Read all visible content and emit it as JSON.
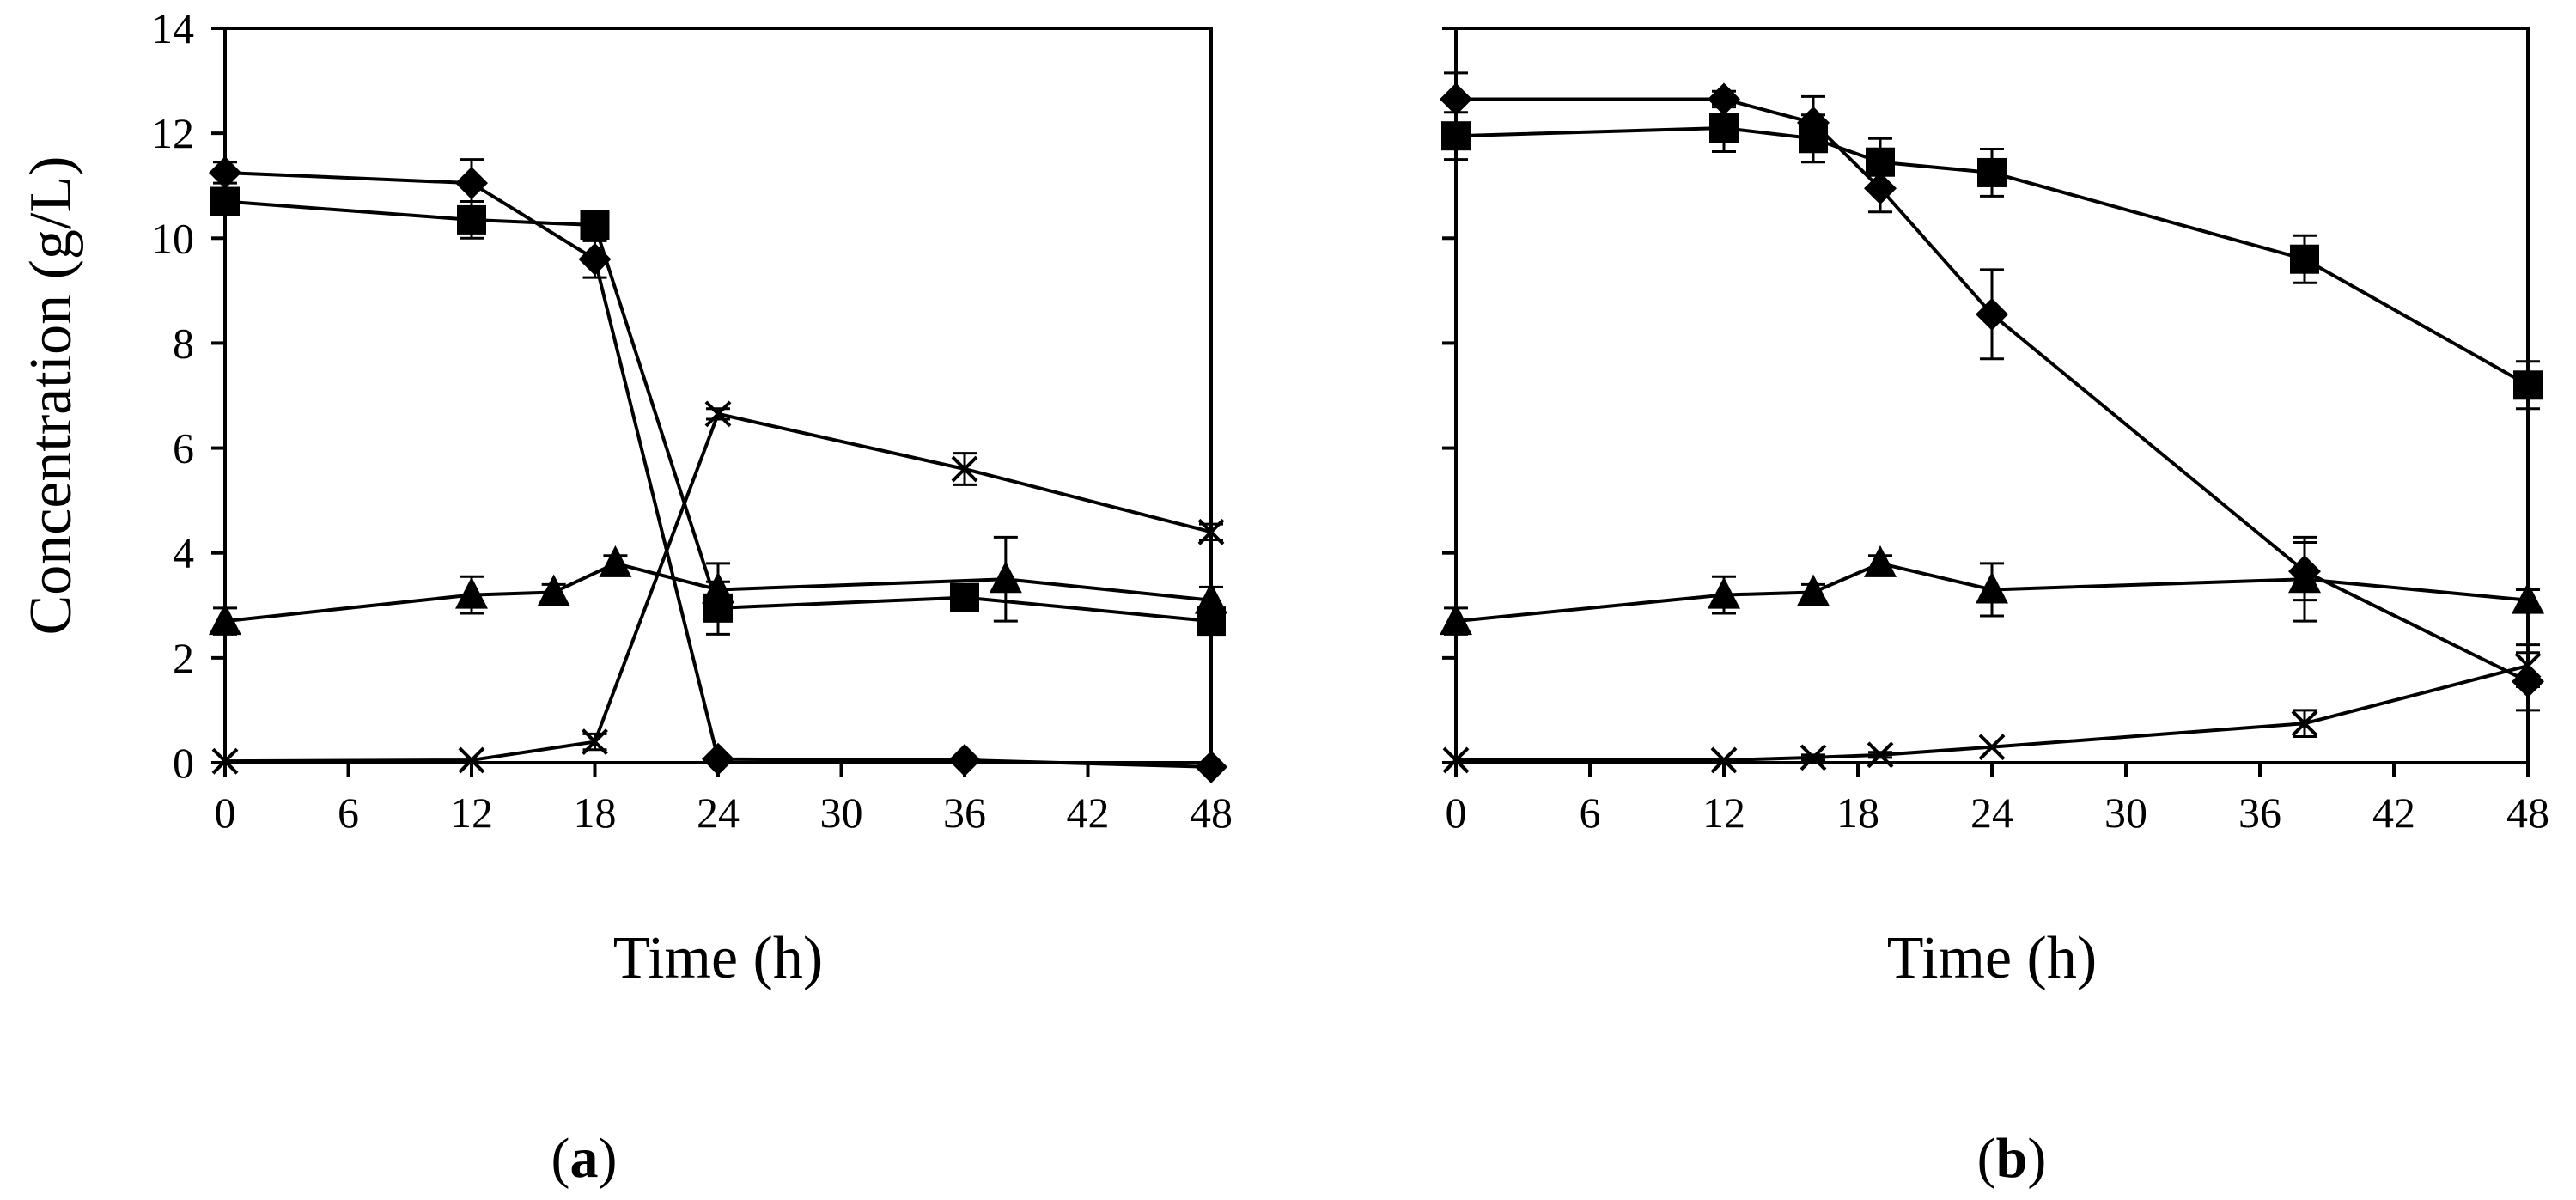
{
  "chart_data": [
    {
      "type": "line",
      "panel_label": "a",
      "xlabel": "Time (h)",
      "ylabel": "Concentration (g/L)",
      "xlim": [
        0,
        48
      ],
      "ylim": [
        0,
        14
      ],
      "xticks": [
        "0",
        "6",
        "12",
        "18",
        "24",
        "30",
        "36",
        "42",
        "48"
      ],
      "yticks": [
        "0",
        "2",
        "4",
        "6",
        "8",
        "10",
        "12",
        "14"
      ],
      "grid": false,
      "series": [
        {
          "marker": "diamond",
          "color": "#000000",
          "x": [
            0,
            12,
            18,
            24,
            36,
            48
          ],
          "values": [
            11.25,
            11.05,
            9.6,
            0.07,
            0.05,
            -0.08
          ],
          "errors": [
            0.2,
            0.45,
            0.35,
            0.05,
            0.03,
            0.0
          ]
        },
        {
          "marker": "square",
          "color": "#000000",
          "x": [
            0,
            12,
            18,
            24,
            36,
            48
          ],
          "values": [
            10.7,
            10.35,
            10.25,
            2.95,
            3.15,
            2.7
          ],
          "errors": [
            0.2,
            0.35,
            0.1,
            0.5,
            0.2,
            0.2
          ]
        },
        {
          "marker": "triangle",
          "color": "#000000",
          "x": [
            0,
            12,
            16,
            19,
            24,
            38,
            48
          ],
          "values": [
            2.7,
            3.2,
            3.25,
            3.8,
            3.3,
            3.5,
            3.1
          ],
          "errors": [
            0.25,
            0.35,
            0.15,
            0.15,
            0.5,
            0.8,
            0.25
          ]
        },
        {
          "marker": "asterisk",
          "color": "#000000",
          "x": [
            0,
            12,
            18,
            24,
            36,
            48
          ],
          "values": [
            0.03,
            0.05,
            0.4,
            6.65,
            5.6,
            4.4
          ],
          "errors": [
            0.0,
            0.0,
            0.15,
            0.1,
            0.3,
            0.15
          ]
        }
      ]
    },
    {
      "type": "line",
      "panel_label": "b",
      "xlabel": "Time (h)",
      "ylabel": "",
      "xlim": [
        0,
        48
      ],
      "ylim": [
        0,
        14
      ],
      "xticks": [
        "0",
        "6",
        "12",
        "18",
        "24",
        "30",
        "36",
        "42",
        "48"
      ],
      "yticks": [],
      "grid": false,
      "series": [
        {
          "marker": "diamond",
          "color": "#000000",
          "x": [
            0,
            12,
            16,
            19,
            24,
            38,
            48
          ],
          "values": [
            12.65,
            12.65,
            12.2,
            10.95,
            8.55,
            3.65,
            1.55
          ],
          "errors": [
            0.5,
            0.15,
            0.5,
            0.45,
            0.85,
            0.55,
            0.55
          ]
        },
        {
          "marker": "square",
          "color": "#000000",
          "x": [
            0,
            12,
            16,
            19,
            24,
            38,
            48
          ],
          "values": [
            11.95,
            12.1,
            11.9,
            11.45,
            11.25,
            9.6,
            7.2
          ],
          "errors": [
            0.45,
            0.45,
            0.45,
            0.45,
            0.45,
            0.45,
            0.45
          ]
        },
        {
          "marker": "triangle",
          "color": "#000000",
          "x": [
            0,
            12,
            16,
            19,
            24,
            38,
            48
          ],
          "values": [
            2.7,
            3.2,
            3.25,
            3.8,
            3.3,
            3.5,
            3.1
          ],
          "errors": [
            0.25,
            0.35,
            0.15,
            0.15,
            0.5,
            0.8,
            0.2
          ]
        },
        {
          "marker": "asterisk",
          "color": "#000000",
          "x": [
            0,
            12,
            16,
            19,
            24,
            38,
            48
          ],
          "values": [
            0.05,
            0.05,
            0.1,
            0.15,
            0.3,
            0.75,
            1.85
          ],
          "errors": [
            0.0,
            0.0,
            0.05,
            0.05,
            0.0,
            0.25,
            0.4
          ]
        }
      ]
    }
  ]
}
